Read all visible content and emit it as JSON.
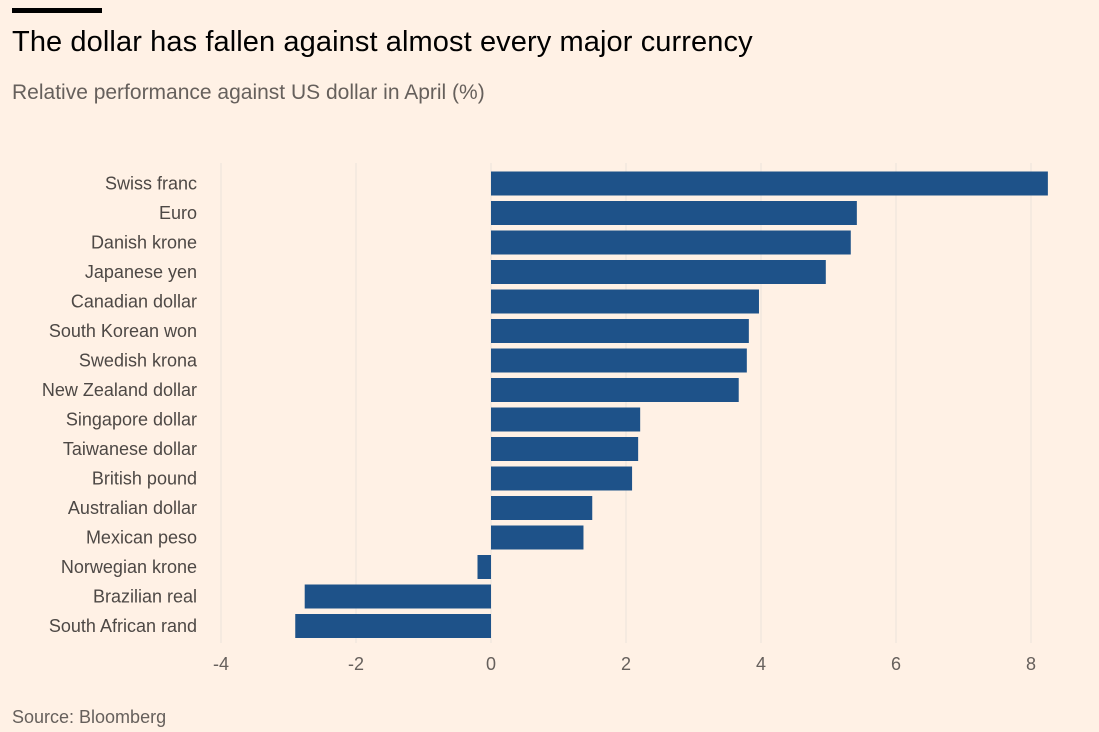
{
  "title": "The dollar has fallen against almost every major currency",
  "subtitle": "Relative performance against US dollar in April (%)",
  "source": "Source: Bloomberg",
  "colors": {
    "background": "#fff1e5",
    "bar": "#1e5289",
    "grid": "#ebe2da",
    "label": "#4d4845"
  },
  "chart_data": {
    "type": "bar",
    "orientation": "horizontal",
    "title": "The dollar has fallen against almost every major currency",
    "subtitle": "Relative performance against US dollar in April (%)",
    "xlabel": "",
    "ylabel": "",
    "xlim": [
      -4,
      8.5
    ],
    "x_ticks": [
      -4,
      -2,
      0,
      2,
      4,
      6,
      8
    ],
    "x_tick_labels": [
      "-4",
      "-2",
      "0",
      "2",
      "4",
      "6",
      "8"
    ],
    "grid": "vertical",
    "categories": [
      "Swiss franc",
      "Euro",
      "Danish krone",
      "Japanese yen",
      "Canadian dollar",
      "South Korean won",
      "Swedish krona",
      "New Zealand dollar",
      "Singapore dollar",
      "Taiwanese dollar",
      "British pound",
      "Australian dollar",
      "Mexican peso",
      "Norwegian krone",
      "Brazilian real",
      "South African rand"
    ],
    "values": [
      8.25,
      5.42,
      5.33,
      4.96,
      3.97,
      3.82,
      3.79,
      3.67,
      2.21,
      2.18,
      2.09,
      1.5,
      1.37,
      -0.2,
      -2.76,
      -2.9
    ]
  }
}
